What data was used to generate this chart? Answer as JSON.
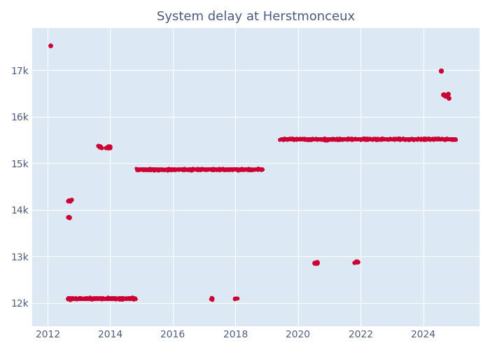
{
  "title": "System delay at Herstmonceux",
  "background_color": "#FFFFFF",
  "plot_bg_color": "#dce9f5",
  "point_color": "#cc0033",
  "point_size": 3,
  "xlim": [
    2011.5,
    2025.8
  ],
  "ylim": [
    11500,
    17900
  ],
  "yticks": [
    12000,
    13000,
    14000,
    15000,
    16000,
    17000
  ],
  "ytick_labels": [
    "12k",
    "13k",
    "14k",
    "15k",
    "16k",
    "17k"
  ],
  "xticks": [
    2012,
    2014,
    2016,
    2018,
    2020,
    2022,
    2024
  ],
  "tick_color": "#4a5a7a",
  "grid_color": "#FFFFFF",
  "title_color": "#4a5a7a",
  "title_fontsize": 13
}
